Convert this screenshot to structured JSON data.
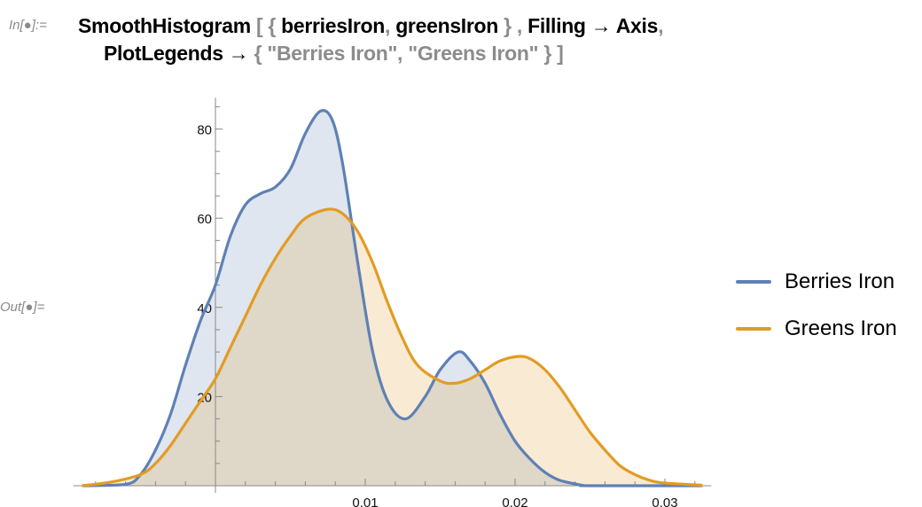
{
  "notebook": {
    "in_label": "In[●]:=",
    "out_label": "Out[●]=",
    "code_line1": [
      {
        "text": "SmoothHistogram ",
        "style": "k"
      },
      {
        "text": "[ { ",
        "style": "g"
      },
      {
        "text": "berriesIron",
        "style": "k"
      },
      {
        "text": ", ",
        "style": "g"
      },
      {
        "text": "greensIron",
        "style": "k"
      },
      {
        "text": " } , ",
        "style": "g"
      },
      {
        "text": "Filling → Axis",
        "style": "k"
      },
      {
        "text": ",",
        "style": "g"
      }
    ],
    "code_line2": [
      {
        "text": "PlotLegends → ",
        "style": "k"
      },
      {
        "text": "{ \"Berries Iron\", \"Greens Iron\" } ]",
        "style": "g"
      }
    ]
  },
  "chart_data": {
    "type": "area",
    "title": "",
    "xlabel": "",
    "ylabel": "",
    "xlim": [
      -0.0089,
      0.0325
    ],
    "ylim": [
      0,
      87
    ],
    "x_ticks": [
      0.01,
      0.02,
      0.03
    ],
    "x_tick_labels": [
      "0.01",
      "0.02",
      "0.03"
    ],
    "y_ticks": [
      20,
      40,
      60,
      80
    ],
    "y_tick_labels": [
      "20",
      "40",
      "60",
      "80"
    ],
    "grid": false,
    "legend_position": "right",
    "series": [
      {
        "name": "Berries Iron",
        "color": "#5e81b5",
        "fill": "#5e81b5",
        "points": [
          [
            -0.0089,
            0
          ],
          [
            -0.006,
            0.3
          ],
          [
            -0.005,
            2.5
          ],
          [
            -0.004,
            8
          ],
          [
            -0.003,
            16
          ],
          [
            -0.002,
            27
          ],
          [
            -0.001,
            37
          ],
          [
            0,
            45
          ],
          [
            0.001,
            56
          ],
          [
            0.002,
            63
          ],
          [
            0.003,
            65.5
          ],
          [
            0.004,
            67
          ],
          [
            0.005,
            71
          ],
          [
            0.006,
            79
          ],
          [
            0.007,
            84
          ],
          [
            0.0078,
            82
          ],
          [
            0.0085,
            72
          ],
          [
            0.0095,
            50
          ],
          [
            0.0105,
            30
          ],
          [
            0.0115,
            19
          ],
          [
            0.0127,
            15
          ],
          [
            0.014,
            20
          ],
          [
            0.015,
            26
          ],
          [
            0.0162,
            30
          ],
          [
            0.017,
            28
          ],
          [
            0.018,
            23
          ],
          [
            0.019,
            16
          ],
          [
            0.02,
            10
          ],
          [
            0.021,
            6
          ],
          [
            0.022,
            3
          ],
          [
            0.023,
            1.2
          ],
          [
            0.0245,
            0.1
          ],
          [
            0.025,
            0
          ],
          [
            0.0325,
            0
          ]
        ]
      },
      {
        "name": "Greens Iron",
        "color": "#e19c24",
        "fill": "#e19c24",
        "points": [
          [
            -0.0089,
            0
          ],
          [
            -0.007,
            0.8
          ],
          [
            -0.005,
            2.5
          ],
          [
            -0.004,
            5
          ],
          [
            -0.003,
            9
          ],
          [
            -0.002,
            14
          ],
          [
            -0.001,
            19
          ],
          [
            0,
            24
          ],
          [
            0.001,
            31
          ],
          [
            0.002,
            38
          ],
          [
            0.003,
            45
          ],
          [
            0.004,
            51
          ],
          [
            0.005,
            56
          ],
          [
            0.006,
            60
          ],
          [
            0.0075,
            62
          ],
          [
            0.0085,
            61
          ],
          [
            0.0095,
            57
          ],
          [
            0.0105,
            50
          ],
          [
            0.0115,
            41
          ],
          [
            0.0125,
            33
          ],
          [
            0.0135,
            27
          ],
          [
            0.015,
            23.5
          ],
          [
            0.016,
            23
          ],
          [
            0.017,
            24
          ],
          [
            0.018,
            26
          ],
          [
            0.019,
            28
          ],
          [
            0.0202,
            29
          ],
          [
            0.021,
            28.5
          ],
          [
            0.022,
            26
          ],
          [
            0.023,
            22
          ],
          [
            0.024,
            17
          ],
          [
            0.025,
            12
          ],
          [
            0.026,
            8
          ],
          [
            0.027,
            4.5
          ],
          [
            0.028,
            2.5
          ],
          [
            0.029,
            1.2
          ],
          [
            0.03,
            0.6
          ],
          [
            0.0325,
            0.1
          ]
        ]
      }
    ]
  }
}
